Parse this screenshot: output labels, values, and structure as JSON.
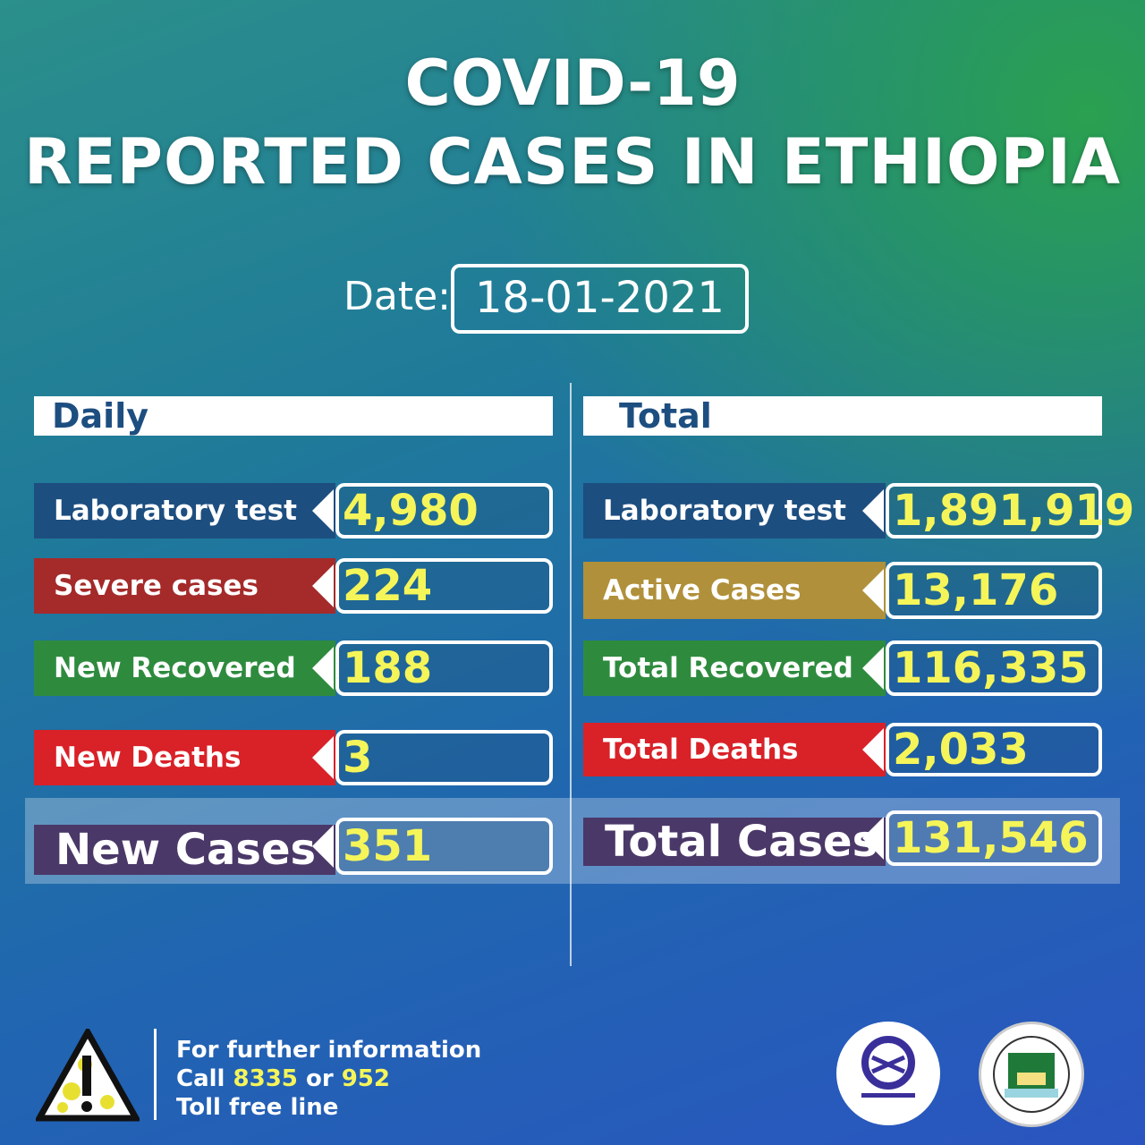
{
  "header": {
    "line1": "COVID-19",
    "line2": "REPORTED CASES IN ETHIOPIA"
  },
  "date": {
    "label": "Date:",
    "value": "18-01-2021"
  },
  "daily": {
    "heading": "Daily",
    "rows": [
      {
        "label": "Laboratory test",
        "value": "4,980",
        "color": "#1d4e80"
      },
      {
        "label": "Severe cases",
        "value": "224",
        "color": "#a52a2a"
      },
      {
        "label": "New Recovered",
        "value": "188",
        "color": "#2e8b3e"
      },
      {
        "label": "New Deaths",
        "value": "3",
        "color": "#d92128"
      }
    ],
    "summary": {
      "label": "New Cases",
      "value": "351",
      "color": "#4a3868"
    }
  },
  "total": {
    "heading": "Total",
    "rows": [
      {
        "label": "Laboratory test",
        "value": "1,891,919",
        "color": "#1d4e80"
      },
      {
        "label": "Active Cases",
        "value": "13,176",
        "color": "#b0903a"
      },
      {
        "label": "Total Recovered",
        "value": "116,335",
        "color": "#2e8b3e"
      },
      {
        "label": "Total Deaths",
        "value": "2,033",
        "color": "#d92128"
      }
    ],
    "summary": {
      "label": "Total Cases",
      "value": "131,546",
      "color": "#4a3868"
    }
  },
  "footer": {
    "line1": "For further information",
    "call": "Call",
    "num1": "8335",
    "or": "or",
    "num2": "952",
    "line3": "Toll free line",
    "icons": [
      "warning-virus-icon",
      "ministry-of-health-logo",
      "ephi-logo"
    ]
  }
}
